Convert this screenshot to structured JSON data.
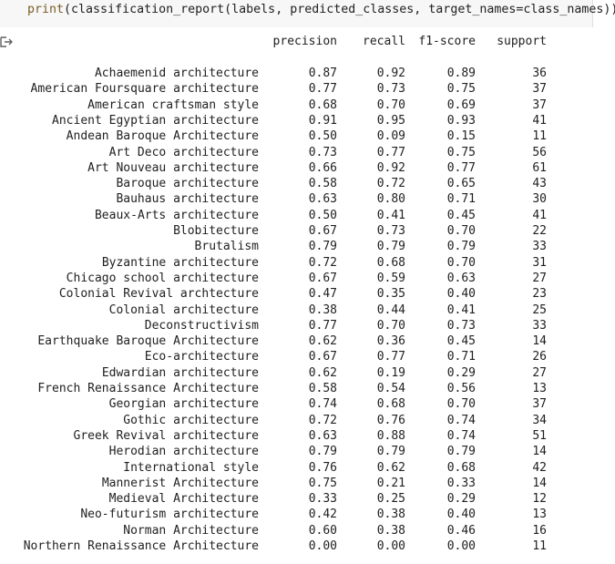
{
  "code": {
    "fn": "print",
    "args": "(classification_report(labels, predicted_classes, target_names=class_names))"
  },
  "output_icon": "output-arrow-icon",
  "table": {
    "headers": {
      "precision": "precision",
      "recall": "recall",
      "f1": "f1-score",
      "support": "support"
    },
    "rows": [
      {
        "name": "Achaemenid architecture",
        "precision": "0.87",
        "recall": "0.92",
        "f1": "0.89",
        "support": "36"
      },
      {
        "name": "American Foursquare architecture",
        "precision": "0.77",
        "recall": "0.73",
        "f1": "0.75",
        "support": "37"
      },
      {
        "name": "American craftsman style",
        "precision": "0.68",
        "recall": "0.70",
        "f1": "0.69",
        "support": "37"
      },
      {
        "name": "Ancient Egyptian architecture",
        "precision": "0.91",
        "recall": "0.95",
        "f1": "0.93",
        "support": "41"
      },
      {
        "name": "Andean Baroque Architecture",
        "precision": "0.50",
        "recall": "0.09",
        "f1": "0.15",
        "support": "11"
      },
      {
        "name": "Art Deco architecture",
        "precision": "0.73",
        "recall": "0.77",
        "f1": "0.75",
        "support": "56"
      },
      {
        "name": "Art Nouveau architecture",
        "precision": "0.66",
        "recall": "0.92",
        "f1": "0.77",
        "support": "61"
      },
      {
        "name": "Baroque architecture",
        "precision": "0.58",
        "recall": "0.72",
        "f1": "0.65",
        "support": "43"
      },
      {
        "name": "Bauhaus architecture",
        "precision": "0.63",
        "recall": "0.80",
        "f1": "0.71",
        "support": "30"
      },
      {
        "name": "Beaux-Arts architecture",
        "precision": "0.50",
        "recall": "0.41",
        "f1": "0.45",
        "support": "41"
      },
      {
        "name": "Blobitecture",
        "precision": "0.67",
        "recall": "0.73",
        "f1": "0.70",
        "support": "22"
      },
      {
        "name": "Brutalism",
        "precision": "0.79",
        "recall": "0.79",
        "f1": "0.79",
        "support": "33"
      },
      {
        "name": "Byzantine architecture",
        "precision": "0.72",
        "recall": "0.68",
        "f1": "0.70",
        "support": "31"
      },
      {
        "name": "Chicago school architecture",
        "precision": "0.67",
        "recall": "0.59",
        "f1": "0.63",
        "support": "27"
      },
      {
        "name": "Colonial Revival archtecture",
        "precision": "0.47",
        "recall": "0.35",
        "f1": "0.40",
        "support": "23"
      },
      {
        "name": "Colonial architecture",
        "precision": "0.38",
        "recall": "0.44",
        "f1": "0.41",
        "support": "25"
      },
      {
        "name": "Deconstructivism",
        "precision": "0.77",
        "recall": "0.70",
        "f1": "0.73",
        "support": "33"
      },
      {
        "name": "Earthquake Baroque Architecture",
        "precision": "0.62",
        "recall": "0.36",
        "f1": "0.45",
        "support": "14"
      },
      {
        "name": "Eco-architecture",
        "precision": "0.67",
        "recall": "0.77",
        "f1": "0.71",
        "support": "26"
      },
      {
        "name": "Edwardian architecture",
        "precision": "0.62",
        "recall": "0.19",
        "f1": "0.29",
        "support": "27"
      },
      {
        "name": "French Renaissance Architecture",
        "precision": "0.58",
        "recall": "0.54",
        "f1": "0.56",
        "support": "13"
      },
      {
        "name": "Georgian architecture",
        "precision": "0.74",
        "recall": "0.68",
        "f1": "0.70",
        "support": "37"
      },
      {
        "name": "Gothic architecture",
        "precision": "0.72",
        "recall": "0.76",
        "f1": "0.74",
        "support": "34"
      },
      {
        "name": "Greek Revival architecture",
        "precision": "0.63",
        "recall": "0.88",
        "f1": "0.74",
        "support": "51"
      },
      {
        "name": "Herodian architecture",
        "precision": "0.79",
        "recall": "0.79",
        "f1": "0.79",
        "support": "14"
      },
      {
        "name": "International style",
        "precision": "0.76",
        "recall": "0.62",
        "f1": "0.68",
        "support": "42"
      },
      {
        "name": "Mannerist Architecture",
        "precision": "0.75",
        "recall": "0.21",
        "f1": "0.33",
        "support": "14"
      },
      {
        "name": "Medieval Architecture",
        "precision": "0.33",
        "recall": "0.25",
        "f1": "0.29",
        "support": "12"
      },
      {
        "name": "Neo-futurism architecture",
        "precision": "0.42",
        "recall": "0.38",
        "f1": "0.40",
        "support": "13"
      },
      {
        "name": "Norman Architecture",
        "precision": "0.60",
        "recall": "0.38",
        "f1": "0.46",
        "support": "16"
      },
      {
        "name": "Northern Renaissance Architecture",
        "precision": "0.00",
        "recall": "0.00",
        "f1": "0.00",
        "support": "11"
      }
    ]
  }
}
